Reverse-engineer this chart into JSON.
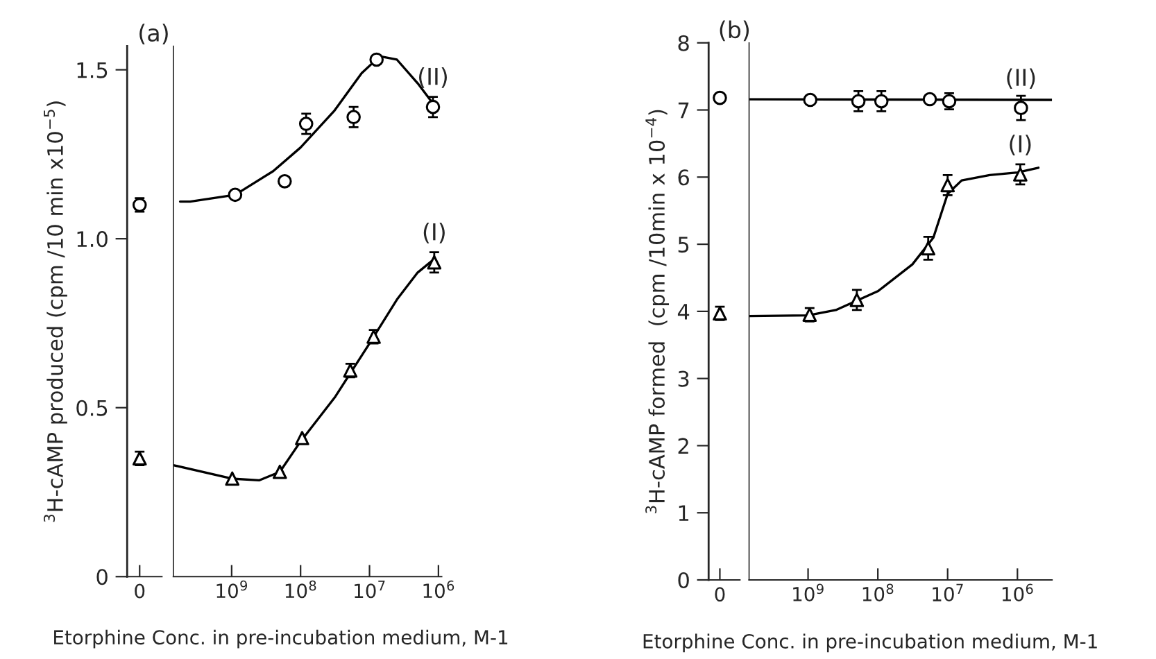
{
  "chart_data": [
    {
      "type": "scatter",
      "title": "(a)",
      "ylabel": "$^{3}$H-cAMP produced (cpm /10 min x10$^{−5}$)",
      "categories": [
        "0"
      ],
      "ylim": [
        0,
        1.57
      ],
      "yticks": [
        0,
        0.5,
        {
          "value": 1,
          "label": "1.0"
        },
        1.5
      ],
      "grid": false,
      "legend": false,
      "series": [
        {
          "marker": "circle",
          "color": "#000000",
          "values": [
            1.1
          ],
          "errors": [
            0.02
          ]
        },
        {
          "marker": "triangle",
          "color": "#000000",
          "values": [
            0.35
          ],
          "errors": [
            0.02
          ]
        }
      ]
    },
    {
      "type": "scatter",
      "xlabel": "Etorphine Conc. in pre-incubation medium, M-1",
      "log": "x",
      "tick_labels": "x",
      "xlim": [
        7000000000.0,
        900000.0
      ],
      "xticks": [
        {
          "value": 1000000000.0,
          "label": "10$^{9}$"
        },
        {
          "value": 100000000.0,
          "label": "10$^{8}$"
        },
        {
          "value": 10000000.0,
          "label": "10$^{7}$"
        },
        {
          "value": 1000000.0,
          "label": "10$^{6}$"
        }
      ],
      "ylim": [
        0,
        1.57
      ],
      "yticks": [
        0,
        0.5,
        1,
        1.5
      ],
      "grid": false,
      "legend": false,
      "series": [
        {
          "name": "(II)",
          "marker": "circle",
          "color": "#000000",
          "x": [
            890000000.0,
            170000000.0,
            83000000.0,
            17000000.0,
            7900000.0,
            1200000.0
          ],
          "values": [
            1.13,
            1.17,
            1.34,
            1.36,
            1.53,
            1.39
          ],
          "errors": [
            null,
            null,
            0.03,
            0.03,
            null,
            0.03
          ]
        },
        {
          "type": "line",
          "color": "#000000",
          "x": [
            5600000000.0,
            4000000000.0,
            890000000.0,
            250000000.0,
            100000000.0,
            32000000.0,
            13000000.0,
            7100000.0,
            4000000.0,
            2000000.0,
            1200000.0
          ],
          "values": [
            1.11,
            1.11,
            1.13,
            1.2,
            1.27,
            1.38,
            1.49,
            1.54,
            1.53,
            1.46,
            1.4
          ]
        },
        {
          "name": "(I)",
          "marker": "triangle",
          "color": "#000000",
          "x": [
            980000000.0,
            200000000.0,
            95000000.0,
            19000000.0,
            8700000.0,
            1150000.0
          ],
          "values": [
            0.29,
            0.31,
            0.41,
            0.61,
            0.71,
            0.93
          ],
          "errors": [
            null,
            null,
            null,
            0.02,
            0.02,
            0.03
          ]
        },
        {
          "type": "line",
          "color": "#000000",
          "x": [
            7000000000.0,
            1000000000.0,
            400000000.0,
            200000000.0,
            100000000.0,
            32000000.0,
            10000000.0,
            4000000.0,
            2000000.0,
            1150000.0
          ],
          "values": [
            0.33,
            0.29,
            0.285,
            0.31,
            0.4,
            0.53,
            0.69,
            0.82,
            0.9,
            0.94
          ]
        }
      ]
    },
    {
      "type": "scatter",
      "title": "(b)",
      "ylabel": "$^{3}$H-cAMP formed  (cpm /10min x 10$^{−4}$)",
      "categories": [
        "0"
      ],
      "ylim": [
        0,
        8
      ],
      "yticks": [
        0,
        1,
        2,
        3,
        4,
        5,
        6,
        7,
        8
      ],
      "grid": false,
      "legend": false,
      "series": [
        {
          "marker": "circle",
          "color": "#000000",
          "values": [
            7.18
          ]
        },
        {
          "marker": "triangle",
          "color": "#000000",
          "values": [
            3.97
          ],
          "errors": [
            0.1
          ]
        }
      ]
    },
    {
      "type": "scatter",
      "xlabel": "Etorphine Conc. in pre-incubation medium, M-1",
      "log": "x",
      "tick_labels": "x",
      "xlim": [
        7000000000.0,
        320000.0
      ],
      "xticks": [
        {
          "value": 1000000000.0,
          "label": "10$^{9}$"
        },
        {
          "value": 100000000.0,
          "label": "10$^{8}$"
        },
        {
          "value": 10000000.0,
          "label": "10$^{7}$"
        },
        {
          "value": 1000000.0,
          "label": "10$^{6}$"
        }
      ],
      "ylim": [
        0,
        8
      ],
      "yticks": [
        0,
        1,
        2,
        3,
        4,
        5,
        6,
        7,
        8
      ],
      "grid": false,
      "legend": false,
      "series": [
        {
          "name": "(II)",
          "marker": "circle",
          "color": "#000000",
          "x": [
            930000000.0,
            190000000.0,
            89000000.0,
            18000000.0,
            9500000.0,
            890000.0
          ],
          "values": [
            7.15,
            7.13,
            7.13,
            7.16,
            7.13,
            7.03
          ],
          "errors": [
            null,
            0.15,
            0.15,
            null,
            0.12,
            0.18
          ]
        },
        {
          "type": "line",
          "color": "#000000",
          "x": [
            7000000000.0,
            320000.0
          ],
          "values": [
            7.16,
            7.15
          ]
        },
        {
          "name": "(I)",
          "marker": "triangle",
          "color": "#000000",
          "x": [
            950000000.0,
            200000000.0,
            19000000.0,
            10000000.0,
            910000.0
          ],
          "values": [
            3.95,
            4.17,
            4.94,
            5.88,
            6.04
          ],
          "errors": [
            0.1,
            0.15,
            0.17,
            0.15,
            0.15
          ]
        },
        {
          "type": "line",
          "color": "#000000",
          "x": [
            7000000000.0,
            1000000000.0,
            400000000.0,
            100000000.0,
            32000000.0,
            16000000.0,
            10000000.0,
            6300000.0,
            2500000.0,
            1000000.0,
            500000.0
          ],
          "values": [
            3.93,
            3.94,
            4.02,
            4.3,
            4.7,
            5.1,
            5.75,
            5.95,
            6.03,
            6.07,
            6.14
          ]
        }
      ]
    }
  ]
}
